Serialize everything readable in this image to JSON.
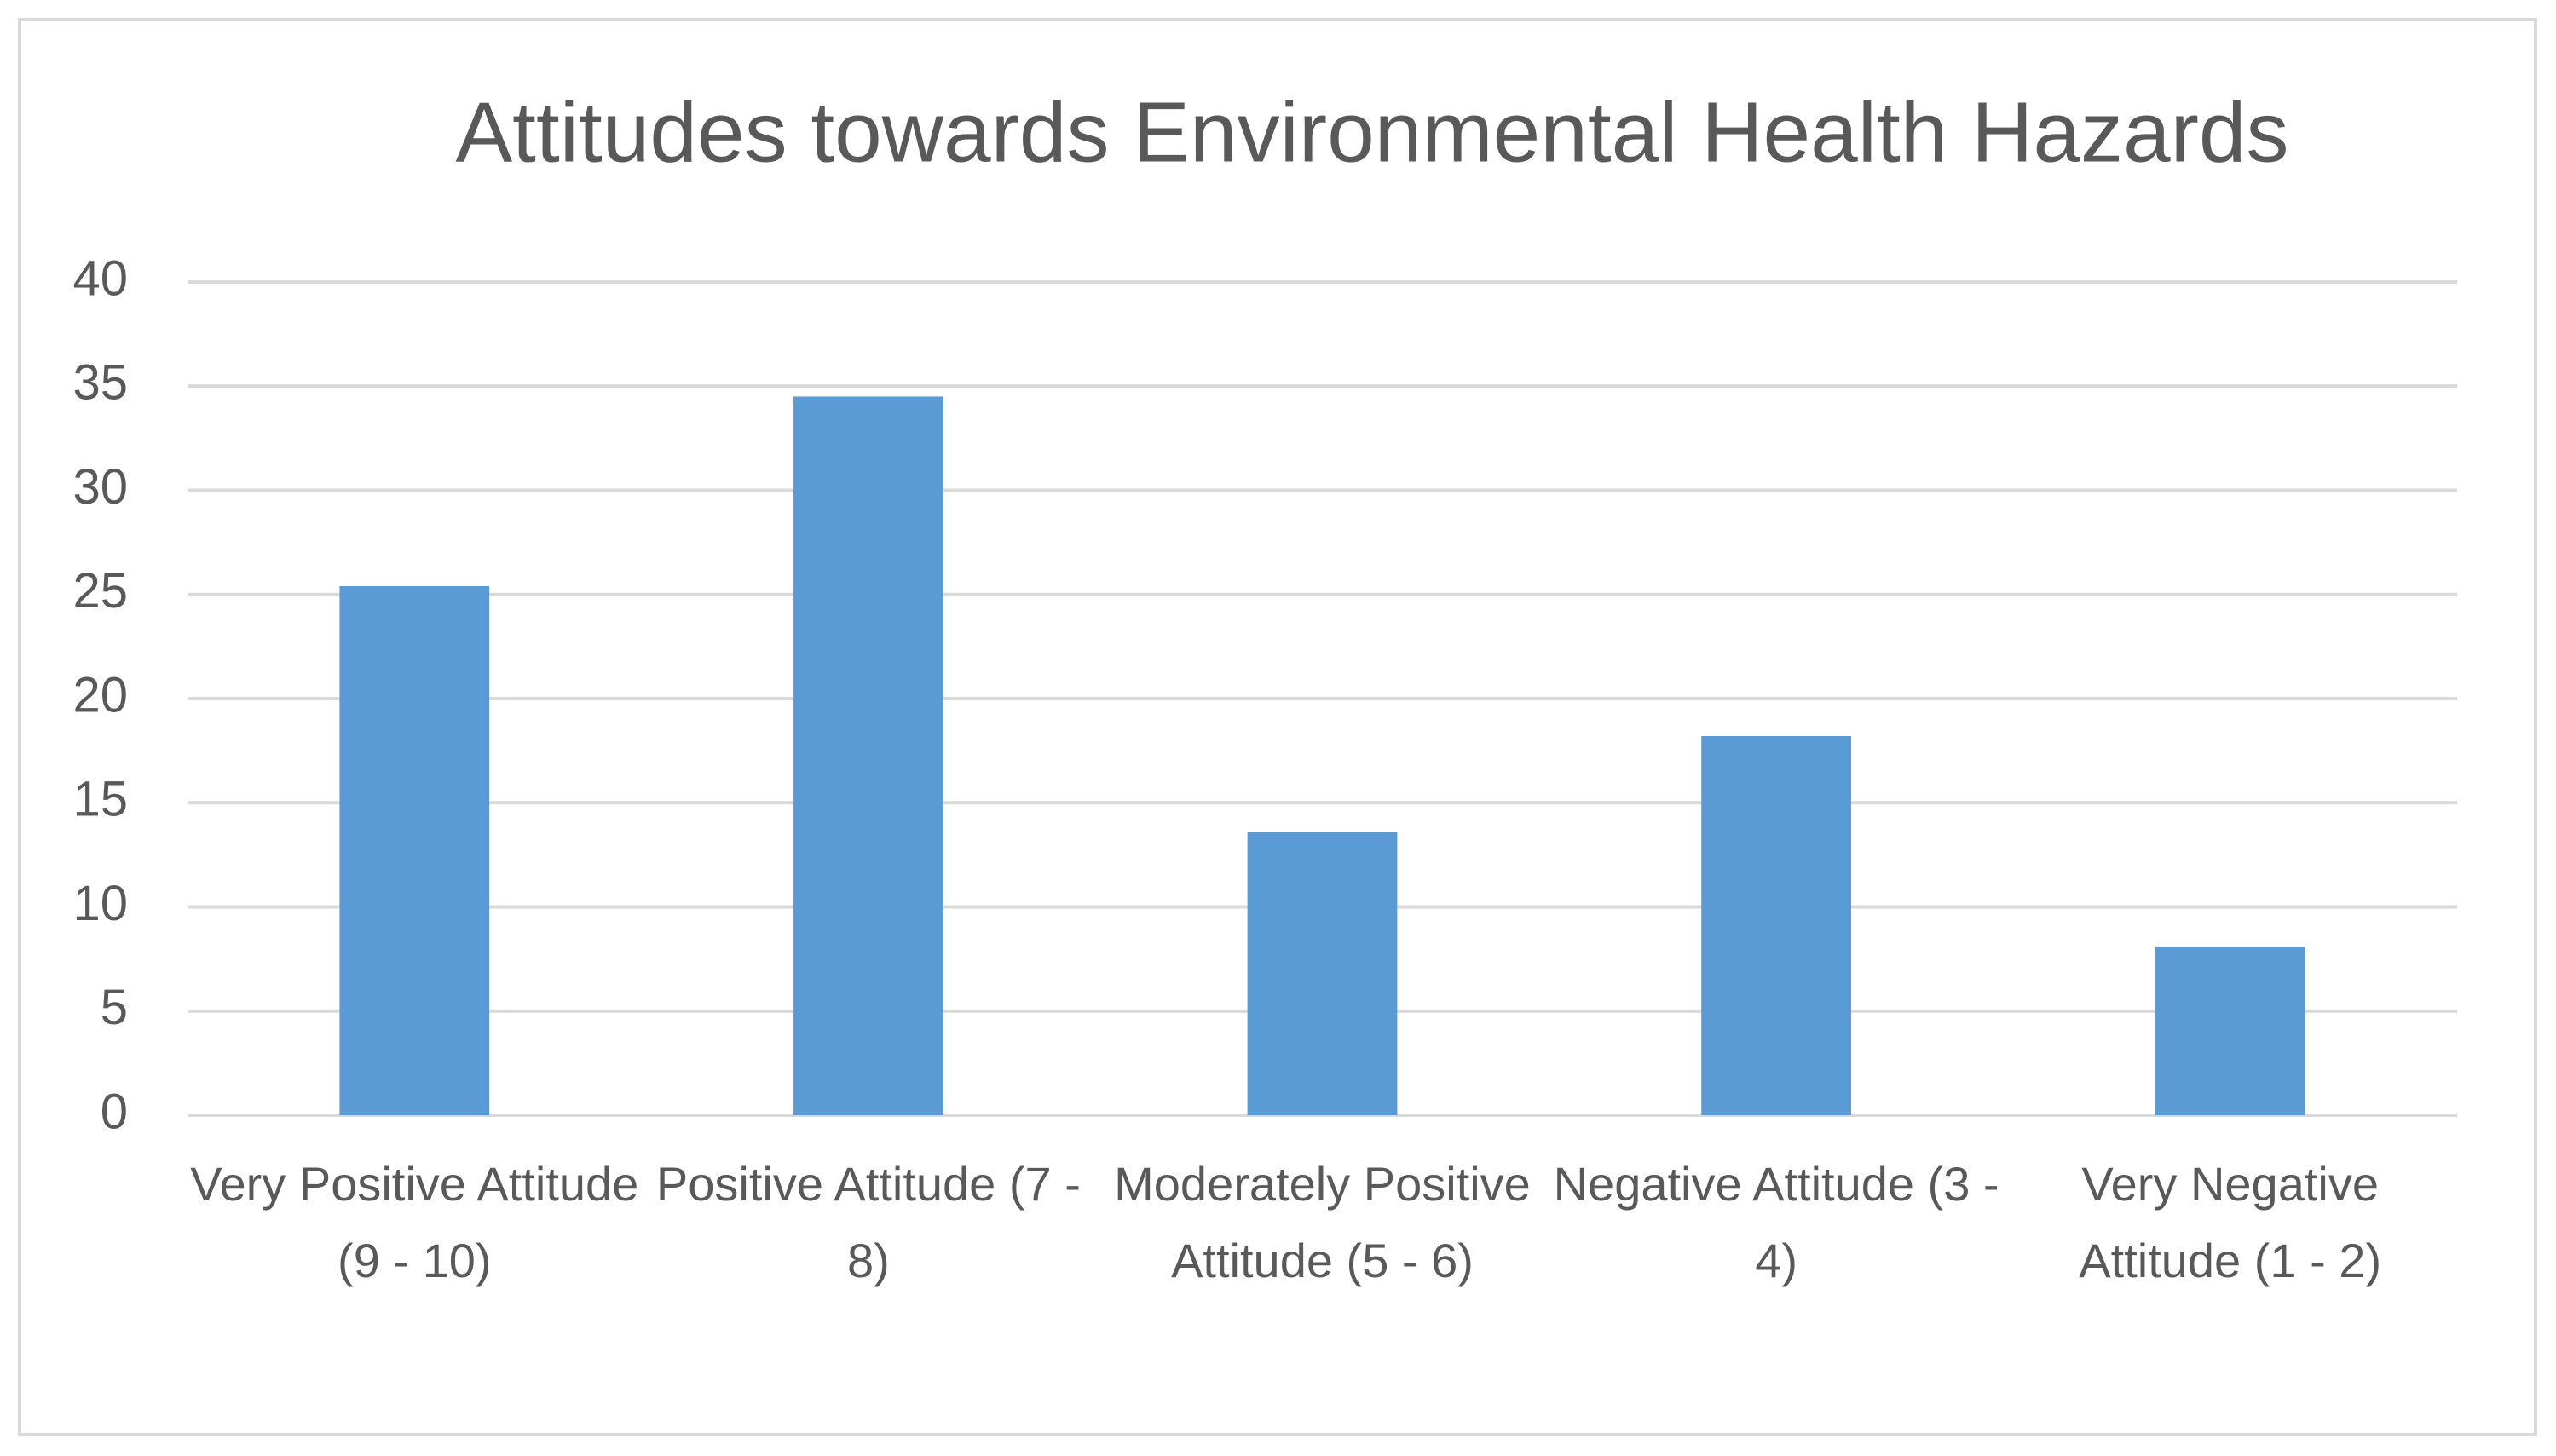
{
  "chart_data": {
    "type": "bar",
    "title": "Attitudes towards Environmental Health Hazards",
    "categories": [
      "Very Positive Attitude (9 - 10)",
      "Positive Attitude (7 - 8)",
      "Moderately Positive Attitude (5 - 6)",
      "Negative Attitude (3 - 4)",
      "Very Negative Attitude (1 - 2)"
    ],
    "values": [
      25.4,
      34.5,
      13.6,
      18.2,
      8.1
    ],
    "color": "#5b9bd5",
    "ylim": [
      0,
      40
    ],
    "yticks": [
      0,
      5,
      10,
      15,
      20,
      25,
      30,
      35,
      40
    ],
    "grid": true
  }
}
